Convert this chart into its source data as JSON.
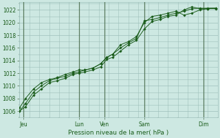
{
  "title": "",
  "xlabel": "Pression niveau de la mer( hPa )",
  "ylabel": "",
  "bg_color": "#cde8e2",
  "grid_color": "#9dbfba",
  "line_color": "#1a5c1a",
  "vline_color": "#446644",
  "ylim": [
    1005.5,
    1023.2
  ],
  "xlim": [
    0,
    100
  ],
  "yticks": [
    1006,
    1008,
    1010,
    1012,
    1014,
    1016,
    1018,
    1020,
    1022
  ],
  "xtick_positions": [
    2,
    30,
    43,
    63,
    93
  ],
  "xtick_labels": [
    "Jeu",
    "Lun",
    "Ven",
    "Sam",
    "Dim"
  ],
  "vline_positions": [
    2,
    30,
    43,
    63,
    93
  ],
  "series": [
    {
      "x": [
        0,
        3,
        7,
        11,
        15,
        19,
        23,
        27,
        30,
        33,
        37,
        41,
        44,
        47,
        51,
        55,
        59,
        63,
        67,
        71,
        75,
        79,
        83,
        87,
        91,
        95,
        99
      ],
      "y": [
        1006.0,
        1006.7,
        1008.5,
        1009.5,
        1010.5,
        1010.8,
        1011.2,
        1011.8,
        1012.0,
        1012.2,
        1012.5,
        1013.0,
        1014.2,
        1014.5,
        1015.5,
        1016.5,
        1017.2,
        1019.0,
        1020.2,
        1020.5,
        1021.0,
        1021.2,
        1022.0,
        1022.5,
        1022.2,
        1022.3,
        1022.3
      ]
    },
    {
      "x": [
        0,
        3,
        7,
        11,
        15,
        19,
        23,
        27,
        30,
        33,
        37,
        41,
        44,
        47,
        51,
        55,
        59,
        63,
        67,
        71,
        75,
        79,
        83,
        87,
        91,
        95,
        99
      ],
      "y": [
        1006.0,
        1007.2,
        1009.0,
        1010.0,
        1010.8,
        1011.2,
        1011.5,
        1012.0,
        1012.2,
        1012.5,
        1012.8,
        1013.5,
        1014.5,
        1015.0,
        1016.0,
        1016.8,
        1017.5,
        1020.3,
        1020.5,
        1020.8,
        1021.2,
        1021.5,
        1021.8,
        1022.2,
        1022.3,
        1022.2,
        1022.3
      ]
    },
    {
      "x": [
        0,
        3,
        7,
        11,
        15,
        19,
        23,
        27,
        30,
        33,
        37,
        41,
        44,
        47,
        51,
        55,
        59,
        63,
        67,
        71,
        75,
        79,
        83,
        87,
        91,
        95,
        99
      ],
      "y": [
        1006.5,
        1008.0,
        1009.5,
        1010.5,
        1011.0,
        1011.3,
        1011.8,
        1012.2,
        1012.5,
        1012.5,
        1012.8,
        1013.5,
        1014.5,
        1015.0,
        1016.5,
        1017.0,
        1017.8,
        1020.0,
        1021.0,
        1021.2,
        1021.5,
        1021.8,
        1021.2,
        1021.5,
        1022.0,
        1022.2,
        1022.2
      ]
    }
  ]
}
